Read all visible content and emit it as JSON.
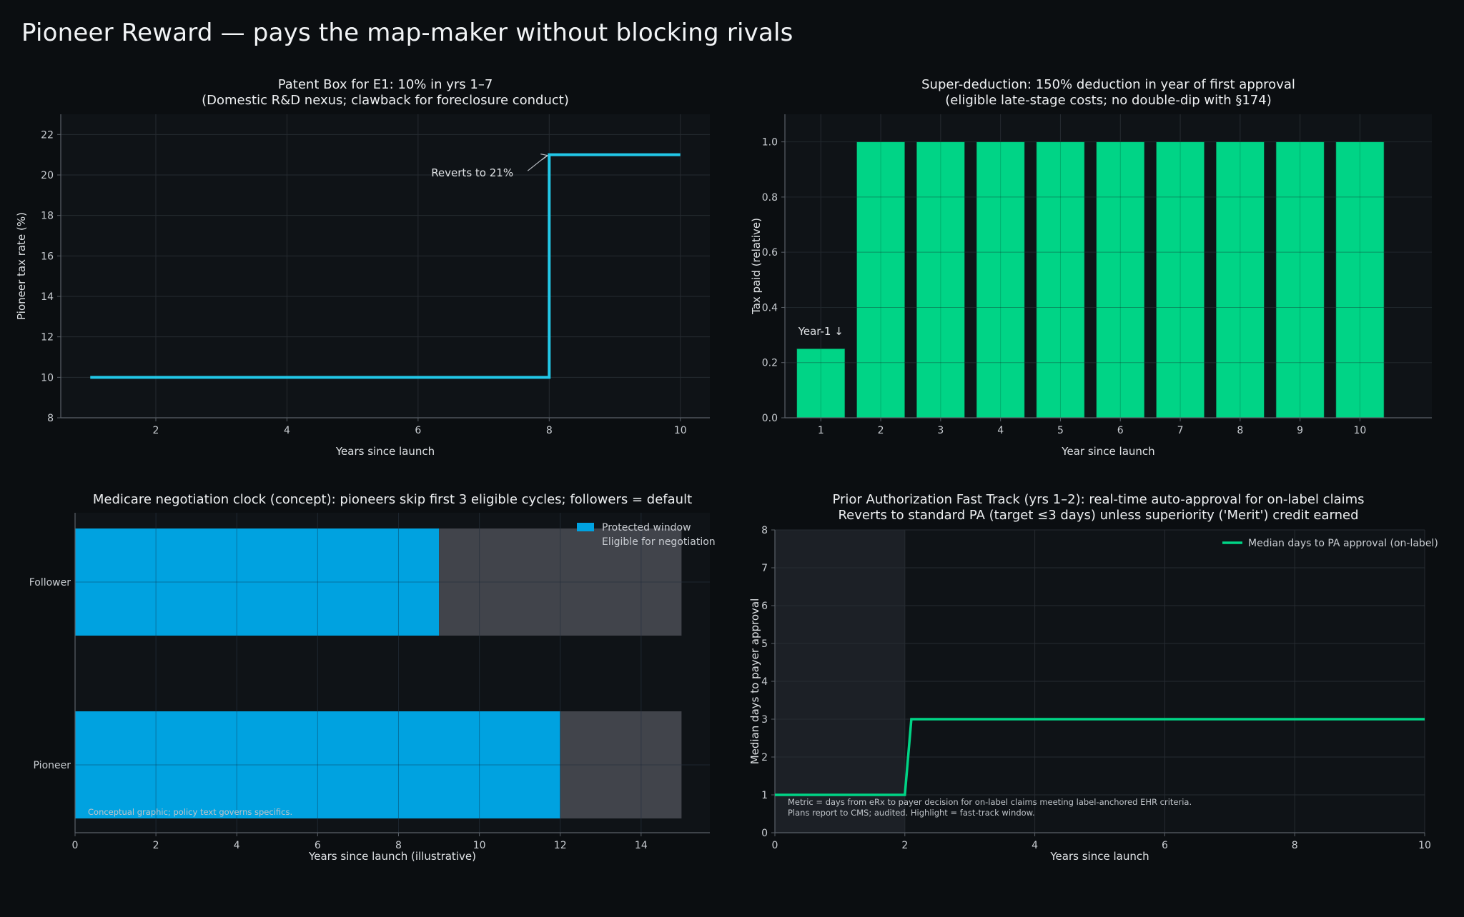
{
  "page": {
    "title": "Pioneer Reward — pays the map-maker without blocking rivals"
  },
  "colors": {
    "background": "#0b0e11",
    "panel": "#0f1317",
    "grid": "#262b31",
    "axis": "#5a6068",
    "cyan": "#22c8e8",
    "green": "#00d486",
    "blue": "#00a2e0",
    "gray_bar": "#41444b",
    "highlight": "#1c2026"
  },
  "chart_data": [
    {
      "id": "patent_box",
      "type": "line",
      "title_lines": [
        "Patent Box for E1: 10% in yrs 1–7",
        "(Domestic R&D nexus; clawback for foreclosure conduct)"
      ],
      "xlabel": "Years since launch",
      "ylabel": "Pioneer tax rate (%)",
      "xlim": [
        0.55,
        10.45
      ],
      "ylim": [
        8,
        23
      ],
      "xticks": [
        2,
        4,
        6,
        8,
        10
      ],
      "yticks": [
        8,
        10,
        12,
        14,
        16,
        18,
        20,
        22
      ],
      "step": "post",
      "x": [
        1,
        2,
        3,
        4,
        5,
        6,
        7,
        8,
        9,
        10
      ],
      "y": [
        10,
        10,
        10,
        10,
        10,
        10,
        10,
        21,
        21,
        21
      ],
      "annotation": {
        "text": "Reverts to 21%",
        "text_x": 6.2,
        "text_y": 20.1,
        "arrow_to_x": 8,
        "arrow_to_y": 21
      }
    },
    {
      "id": "super_deduction",
      "type": "bar",
      "title_lines": [
        "Super-deduction: 150% deduction in year of first approval",
        "(eligible late-stage costs; no double-dip with §174)"
      ],
      "xlabel": "Year since launch",
      "ylabel": "Tax paid (relative)",
      "categories": [
        "1",
        "2",
        "3",
        "4",
        "5",
        "6",
        "7",
        "8",
        "9",
        "10"
      ],
      "values": [
        0.25,
        1.0,
        1.0,
        1.0,
        1.0,
        1.0,
        1.0,
        1.0,
        1.0,
        1.0
      ],
      "ylim": [
        0,
        1.1
      ],
      "yticks": [
        0.0,
        0.2,
        0.4,
        0.6,
        0.8,
        1.0
      ],
      "annotation": {
        "text": "Year-1 ↓",
        "category_index": 0,
        "y": 0.3
      }
    },
    {
      "id": "medicare_clock",
      "type": "bar",
      "orientation": "horizontal",
      "stacked": true,
      "title_lines": [
        "Medicare negotiation clock (concept): pioneers skip first 3 eligible cycles; followers = default"
      ],
      "xlabel": "Years since launch (illustrative)",
      "categories": [
        "Pioneer",
        "Follower"
      ],
      "xlim": [
        0,
        15.7
      ],
      "xticks": [
        0,
        2,
        4,
        6,
        8,
        10,
        12,
        14
      ],
      "series": [
        {
          "name": "Protected window",
          "values": [
            12,
            9
          ]
        },
        {
          "name": "Eligible for negotiation",
          "values": [
            3,
            6
          ]
        }
      ],
      "footnote": "Conceptual graphic; policy text governs specifics."
    },
    {
      "id": "prior_auth",
      "type": "line",
      "title_lines": [
        "Prior Authorization Fast Track (yrs 1–2): real-time auto-approval for on-label claims",
        "Reverts to standard PA (target ≤3 days) unless superiority ('Merit') credit earned"
      ],
      "xlabel": "Years since launch",
      "ylabel": "Median days to payer approval",
      "xlim": [
        0,
        10
      ],
      "ylim": [
        0,
        8
      ],
      "xticks": [
        0,
        2,
        4,
        6,
        8,
        10
      ],
      "yticks": [
        0,
        1,
        2,
        3,
        4,
        5,
        6,
        7,
        8
      ],
      "highlight_x": [
        0,
        2
      ],
      "series": [
        {
          "name": "Median days to PA approval (on-label)",
          "x": [
            0,
            2,
            2.1,
            10
          ],
          "y": [
            1,
            1,
            3,
            3
          ]
        }
      ],
      "notes": [
        "Metric = days from eRx to payer decision for on-label claims meeting label-anchored EHR criteria.",
        "Plans report to CMS; audited. Highlight = fast-track window."
      ]
    }
  ]
}
